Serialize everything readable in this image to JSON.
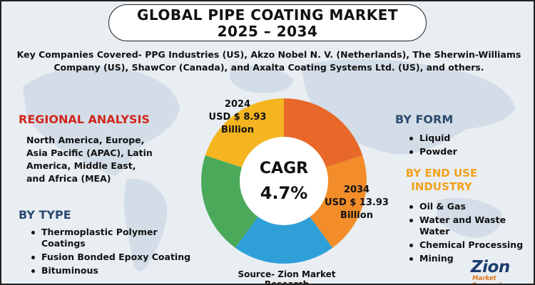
{
  "title": {
    "line1": "GLOBAL PIPE COATING MARKET",
    "line2": "2025 – 2034"
  },
  "companies": {
    "line1": "Key Companies Covered- PPG Industries (US), Akzo Nobel N. V. (Netherlands), The Sherwin-Williams",
    "line2": "Company (US), ShawCor (Canada), and Axalta Coating Systems Ltd. (US), and others."
  },
  "regional": {
    "heading": "REGIONAL ANALYSIS",
    "lines": [
      "North America, Europe,",
      "Asia Pacific (APAC), Latin",
      "America, Middle East,",
      "and Africa (MEA)"
    ]
  },
  "by_type": {
    "heading": "BY TYPE",
    "items": [
      "Thermoplastic Polymer",
      "Coatings",
      "Fusion Bonded Epoxy Coating",
      "Bituminous"
    ]
  },
  "center": {
    "cagr_label": "CAGR",
    "cagr_value": "4.7%",
    "val_2024": {
      "year": "2024",
      "amount": "USD $ 8.93",
      "unit": "Billion"
    },
    "val_2034": {
      "year": "2034",
      "amount": "USD $ 13.93",
      "unit": "Billion"
    },
    "segment_colors": [
      "#e8682a",
      "#f28d2a",
      "#2f9fd8",
      "#4aaa5a",
      "#f4b521"
    ]
  },
  "by_form": {
    "heading": "BY FORM",
    "items": [
      "Liquid",
      "Powder"
    ]
  },
  "by_end_use": {
    "heading_line1": "BY END USE",
    "heading_line2": "INDUSTRY",
    "items": [
      "Oil & Gas",
      "Water and Waste",
      "Water",
      "Chemical Processing",
      "Mining"
    ]
  },
  "source": "Source- Zion Market Research",
  "logo": {
    "name": "Zion",
    "sub": "Market Research"
  },
  "colors": {
    "red": "#d0261b",
    "blue": "#2b4a6f",
    "orange": "#f2a11c"
  }
}
